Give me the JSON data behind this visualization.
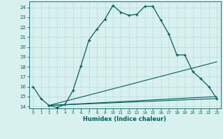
{
  "title": "",
  "xlabel": "Humidex (Indice chaleur)",
  "bg_color": "#d8f0ee",
  "grid_color": "#b8dcd8",
  "line_color": "#006060",
  "xlim": [
    -0.5,
    23.5
  ],
  "ylim": [
    13.8,
    24.6
  ],
  "yticks": [
    14,
    15,
    16,
    17,
    18,
    19,
    20,
    21,
    22,
    23,
    24
  ],
  "xticks": [
    0,
    1,
    2,
    3,
    4,
    5,
    6,
    7,
    8,
    9,
    10,
    11,
    12,
    13,
    14,
    15,
    16,
    17,
    18,
    19,
    20,
    21,
    22,
    23
  ],
  "line1_x": [
    0,
    1,
    2,
    3,
    4,
    5,
    6,
    7,
    8,
    9,
    10,
    11,
    12,
    13,
    14,
    15,
    16,
    17,
    18,
    19,
    20,
    21,
    22,
    23
  ],
  "line1_y": [
    16.0,
    14.8,
    14.1,
    13.9,
    14.2,
    15.6,
    18.1,
    20.7,
    21.8,
    22.8,
    24.2,
    23.5,
    23.2,
    23.3,
    24.1,
    24.1,
    22.7,
    21.3,
    19.2,
    19.2,
    17.5,
    16.8,
    16.0,
    14.8
  ],
  "line2_x": [
    2,
    23
  ],
  "line2_y": [
    14.1,
    18.5
  ],
  "line3_x": [
    2,
    23
  ],
  "line3_y": [
    14.1,
    15.0
  ],
  "line4_x": [
    2,
    23
  ],
  "line4_y": [
    14.1,
    14.8
  ]
}
